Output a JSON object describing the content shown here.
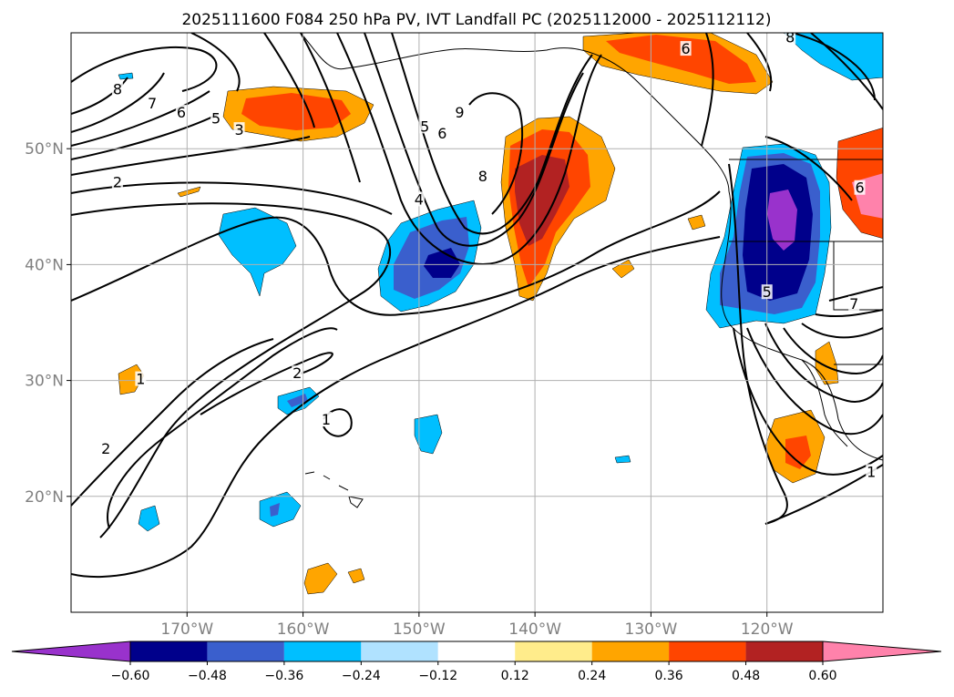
{
  "chart_data": {
    "type": "contour_map",
    "title": "2025111600 F084 250 hPa PV, IVT Landfall PC (2025112000 - 2025112112)",
    "map": {
      "lon_range": [
        -180,
        -110
      ],
      "lat_range": [
        10,
        60
      ],
      "x_ticks": [
        {
          "lon": -170,
          "label": "170°W"
        },
        {
          "lon": -160,
          "label": "160°W"
        },
        {
          "lon": -150,
          "label": "150°W"
        },
        {
          "lon": -140,
          "label": "140°W"
        },
        {
          "lon": -130,
          "label": "130°W"
        },
        {
          "lon": -120,
          "label": "120°W"
        }
      ],
      "y_ticks": [
        {
          "lat": 20,
          "label": "20°N"
        },
        {
          "lat": 30,
          "label": "30°N"
        },
        {
          "lat": 40,
          "label": "40°N"
        },
        {
          "lat": 50,
          "label": "50°N"
        }
      ],
      "grid": true
    },
    "colorbar": {
      "levels": [
        -0.6,
        -0.48,
        -0.36,
        -0.24,
        -0.12,
        0.12,
        0.24,
        0.36,
        0.48,
        0.6
      ],
      "tick_labels": [
        "−0.60",
        "−0.48",
        "−0.36",
        "−0.24",
        "−0.12",
        "0.12",
        "0.24",
        "0.36",
        "0.48",
        "0.60"
      ],
      "colors": [
        "#9932cc",
        "#00008b",
        "#3a5fcd",
        "#00bfff",
        "#b0e2ff",
        "#ffffff",
        "#ffec8b",
        "#ffa500",
        "#ff4500",
        "#b22222",
        "#ff82ab"
      ],
      "extend": "both"
    },
    "filled_anomalies": [
      {
        "lon": -159.5,
        "lat": 52.5,
        "value": 0.36
      },
      {
        "lon": -138.5,
        "lat": 45.5,
        "value": 0.48
      },
      {
        "lon": -150.5,
        "lat": 40.5,
        "value": -0.48
      },
      {
        "lon": -120.0,
        "lat": 44.0,
        "value": -0.6
      },
      {
        "lon": -127.0,
        "lat": 58.0,
        "value": 0.36
      },
      {
        "lon": -112.0,
        "lat": 48.0,
        "value": 0.6
      },
      {
        "lon": -116.5,
        "lat": 22.5,
        "value": 0.36
      },
      {
        "lon": -166.5,
        "lat": 43.0,
        "value": -0.24
      },
      {
        "lon": -115.5,
        "lat": 31.5,
        "value": 0.24
      },
      {
        "lon": -160.5,
        "lat": 18.5,
        "value": -0.36
      },
      {
        "lon": -161.0,
        "lat": 28.5,
        "value": -0.36
      },
      {
        "lon": -174.5,
        "lat": 18.0,
        "value": -0.36
      },
      {
        "lon": -152.5,
        "lat": 27.5,
        "value": -0.24
      },
      {
        "lon": -157.5,
        "lat": 13.5,
        "value": 0.24
      },
      {
        "lon": -175.0,
        "lat": 30.0,
        "value": 0.24
      },
      {
        "lon": -134.5,
        "lat": 40.0,
        "value": 0.24
      },
      {
        "lon": -114.0,
        "lat": 58.0,
        "value": -0.24
      },
      {
        "lon": -123.5,
        "lat": 43.5,
        "value": 0.24
      },
      {
        "lon": -135.5,
        "lat": 23.0,
        "value": -0.24
      }
    ],
    "contour_labels": [
      {
        "lon": -176.0,
        "lat": 55.0,
        "text": "8"
      },
      {
        "lon": -173.0,
        "lat": 53.8,
        "text": "7"
      },
      {
        "lon": -170.5,
        "lat": 53.0,
        "text": "6"
      },
      {
        "lon": -167.5,
        "lat": 52.5,
        "text": "5"
      },
      {
        "lon": -165.5,
        "lat": 51.5,
        "text": "3"
      },
      {
        "lon": -176.0,
        "lat": 47.0,
        "text": "2"
      },
      {
        "lon": -149.5,
        "lat": 51.8,
        "text": "5"
      },
      {
        "lon": -148.0,
        "lat": 51.2,
        "text": "6"
      },
      {
        "lon": -146.5,
        "lat": 53.0,
        "text": "9"
      },
      {
        "lon": -144.5,
        "lat": 47.5,
        "text": "8"
      },
      {
        "lon": -150.0,
        "lat": 45.5,
        "text": "4"
      },
      {
        "lon": -127.0,
        "lat": 58.5,
        "text": "6"
      },
      {
        "lon": -118.0,
        "lat": 59.5,
        "text": "8"
      },
      {
        "lon": -112.0,
        "lat": 46.5,
        "text": "6"
      },
      {
        "lon": -112.5,
        "lat": 36.5,
        "text": "7"
      },
      {
        "lon": -120.0,
        "lat": 37.5,
        "text": "5"
      },
      {
        "lon": -160.5,
        "lat": 30.5,
        "text": "2"
      },
      {
        "lon": -174.0,
        "lat": 30.0,
        "text": "1"
      },
      {
        "lon": -158.0,
        "lat": 26.5,
        "text": "1"
      },
      {
        "lon": -177.0,
        "lat": 24.0,
        "text": "2"
      },
      {
        "lon": -111.0,
        "lat": 22.0,
        "text": "1"
      }
    ]
  }
}
